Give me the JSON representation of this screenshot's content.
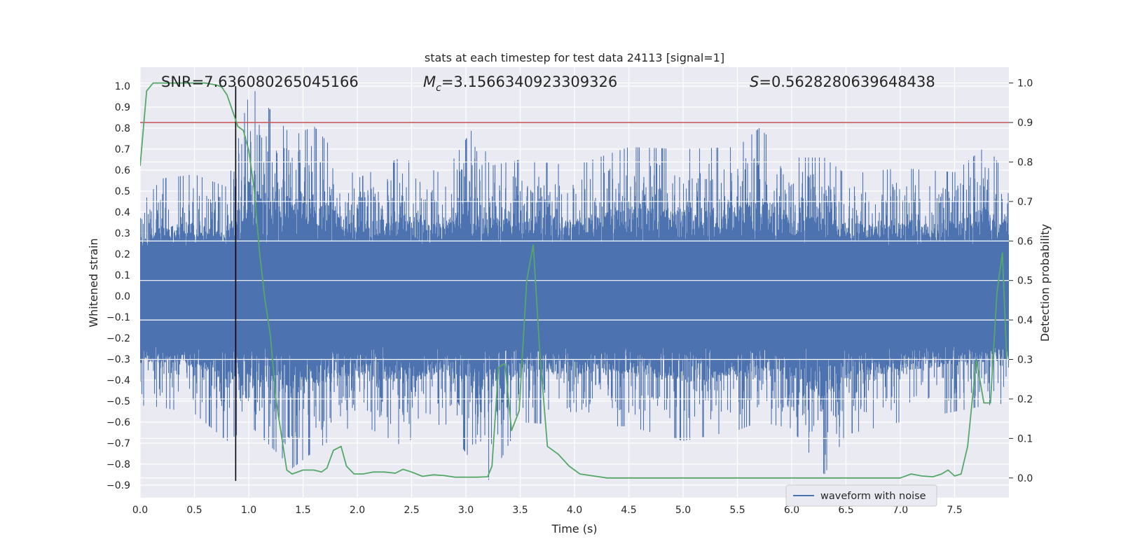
{
  "chart_data": {
    "type": "line",
    "title": "stats at each timestep for test data 24113 [signal=1]",
    "xlabel": "Time (s)",
    "ylabel_left": "Whitened strain",
    "ylabel_right": "Detection probability",
    "xlim": [
      0.0,
      8.0
    ],
    "ylim_left": [
      -0.96,
      1.09
    ],
    "ylim_right": [
      -0.05,
      1.04
    ],
    "x_ticks": [
      "0.0",
      "0.5",
      "1.0",
      "1.5",
      "2.0",
      "2.5",
      "3.0",
      "3.5",
      "4.0",
      "4.5",
      "5.0",
      "5.5",
      "6.0",
      "6.5",
      "7.0",
      "7.5"
    ],
    "y_ticks_left": [
      "-0.9",
      "-0.8",
      "-0.7",
      "-0.6",
      "-0.5",
      "-0.4",
      "-0.3",
      "-0.2",
      "-0.1",
      "0.0",
      "0.1",
      "0.2",
      "0.3",
      "0.4",
      "0.5",
      "0.6",
      "0.7",
      "0.8",
      "0.9",
      "1.0"
    ],
    "y_ticks_right": [
      "0.0",
      "0.1",
      "0.2",
      "0.3",
      "0.4",
      "0.5",
      "0.6",
      "0.7",
      "0.8",
      "0.9",
      "1.0"
    ],
    "grid": true,
    "annotations": {
      "snr": "SNR=7.636080265045166",
      "mc_symbol": "M",
      "mc_sub": "c",
      "mc_value": "=3.1566340923309326",
      "s_symbol": "S",
      "s_value": "=0.5628280639648438"
    },
    "legend": {
      "label": "waveform with noise",
      "position": "lower-right"
    },
    "threshold_right": 0.9,
    "vline_x": 0.88,
    "series": [
      {
        "name": "waveform with noise",
        "axis": "left",
        "color": "#4c72b0",
        "style": "dense-noise",
        "envelope": [
          {
            "x": 0.0,
            "min": -0.52,
            "max": 0.43
          },
          {
            "x": 0.2,
            "min": -0.53,
            "max": 0.56
          },
          {
            "x": 0.5,
            "min": -0.56,
            "max": 0.58
          },
          {
            "x": 0.8,
            "min": -0.69,
            "max": 0.52
          },
          {
            "x": 1.02,
            "min": -0.62,
            "max": 1.0
          },
          {
            "x": 1.4,
            "min": -0.82,
            "max": 0.76
          },
          {
            "x": 1.6,
            "min": -0.74,
            "max": 0.81
          },
          {
            "x": 2.0,
            "min": -0.6,
            "max": 0.56
          },
          {
            "x": 2.4,
            "min": -0.71,
            "max": 0.66
          },
          {
            "x": 2.8,
            "min": -0.6,
            "max": 0.58
          },
          {
            "x": 3.1,
            "min": -0.82,
            "max": 0.83
          },
          {
            "x": 3.22,
            "min": -0.88,
            "max": 0.62
          },
          {
            "x": 3.5,
            "min": -0.6,
            "max": 0.65
          },
          {
            "x": 4.0,
            "min": -0.62,
            "max": 0.62
          },
          {
            "x": 4.5,
            "min": -0.62,
            "max": 0.71
          },
          {
            "x": 5.0,
            "min": -0.69,
            "max": 0.7
          },
          {
            "x": 5.5,
            "min": -0.64,
            "max": 0.71
          },
          {
            "x": 5.7,
            "min": -0.6,
            "max": 0.8
          },
          {
            "x": 6.0,
            "min": -0.63,
            "max": 0.66
          },
          {
            "x": 6.3,
            "min": -0.85,
            "max": 0.66
          },
          {
            "x": 6.5,
            "min": -0.66,
            "max": 0.58
          },
          {
            "x": 7.0,
            "min": -0.6,
            "max": 0.61
          },
          {
            "x": 7.5,
            "min": -0.55,
            "max": 0.59
          },
          {
            "x": 7.8,
            "min": -0.52,
            "max": 0.72
          },
          {
            "x": 8.0,
            "min": -0.51,
            "max": 0.55
          }
        ]
      },
      {
        "name": "",
        "axis": "right",
        "color": "#55a868",
        "x": [
          0.0,
          0.06,
          0.12,
          0.2,
          0.4,
          0.6,
          0.7,
          0.75,
          0.8,
          0.85,
          0.9,
          0.95,
          1.0,
          1.05,
          1.1,
          1.15,
          1.2,
          1.25,
          1.3,
          1.35,
          1.4,
          1.5,
          1.6,
          1.67,
          1.72,
          1.78,
          1.85,
          1.9,
          1.97,
          2.05,
          2.15,
          2.25,
          2.35,
          2.42,
          2.5,
          2.6,
          2.7,
          2.8,
          2.9,
          3.0,
          3.1,
          3.2,
          3.24,
          3.3,
          3.36,
          3.42,
          3.49,
          3.56,
          3.62,
          3.68,
          3.75,
          3.85,
          3.95,
          4.05,
          4.3,
          4.6,
          5.0,
          5.5,
          6.0,
          6.5,
          7.0,
          7.1,
          7.2,
          7.3,
          7.38,
          7.44,
          7.5,
          7.56,
          7.62,
          7.7,
          7.77,
          7.83,
          7.89,
          7.94,
          7.98
        ],
        "values": [
          0.79,
          0.98,
          1.0,
          1.0,
          1.0,
          1.0,
          0.995,
          0.99,
          0.97,
          0.93,
          0.89,
          0.88,
          0.83,
          0.73,
          0.57,
          0.45,
          0.36,
          0.2,
          0.11,
          0.02,
          0.01,
          0.02,
          0.02,
          0.015,
          0.025,
          0.07,
          0.08,
          0.03,
          0.01,
          0.01,
          0.015,
          0.015,
          0.012,
          0.022,
          0.015,
          0.004,
          0.008,
          0.006,
          0.002,
          0.002,
          0.002,
          0.003,
          0.03,
          0.28,
          0.29,
          0.12,
          0.17,
          0.5,
          0.59,
          0.32,
          0.08,
          0.06,
          0.03,
          0.01,
          0.0,
          0.0,
          0.0,
          0.0,
          0.0,
          0.0,
          0.0,
          0.01,
          0.005,
          0.003,
          0.01,
          0.02,
          0.005,
          0.01,
          0.08,
          0.3,
          0.19,
          0.19,
          0.47,
          0.57,
          0.3
        ]
      }
    ]
  }
}
